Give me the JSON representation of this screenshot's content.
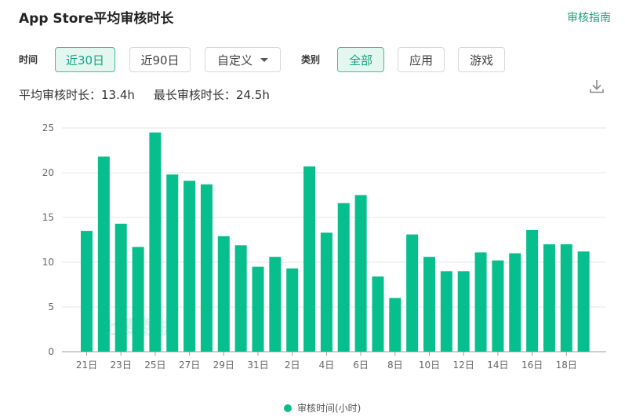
{
  "header": {
    "title": "App Store平均审核时长",
    "guide_link": "审核指南"
  },
  "filters": {
    "time_label": "时间",
    "time_buttons": [
      {
        "label": "近30日",
        "active": true
      },
      {
        "label": "近90日",
        "active": false
      }
    ],
    "custom_dropdown": "自定义",
    "category_label": "类别",
    "category_buttons": [
      {
        "label": "全部",
        "active": true
      },
      {
        "label": "应用",
        "active": false
      },
      {
        "label": "游戏",
        "active": false
      }
    ]
  },
  "stats": {
    "avg_label": "平均审核时长：",
    "avg_value": "13.4h",
    "max_label": "最长审核时长：",
    "max_value": "24.5h"
  },
  "icons": {
    "download": "download-icon"
  },
  "colors": {
    "accent": "#06bf8c",
    "link": "#1a9e7e",
    "active_bg": "#e3f6ef"
  },
  "chart_data": {
    "type": "bar",
    "categories": [
      "21日",
      "22日",
      "23日",
      "24日",
      "25日",
      "26日",
      "27日",
      "28日",
      "29日",
      "30日",
      "31日",
      "1日",
      "2日",
      "3日",
      "4日",
      "5日",
      "6日",
      "7日",
      "8日",
      "9日",
      "10日",
      "11日",
      "12日",
      "13日",
      "14日",
      "15日",
      "16日",
      "17日",
      "18日",
      "19日"
    ],
    "x_tick_labels": [
      "21日",
      "23日",
      "25日",
      "27日",
      "29日",
      "31日",
      "2日",
      "4日",
      "6日",
      "8日",
      "10日",
      "12日",
      "14日",
      "16日",
      "18日"
    ],
    "series": [
      {
        "name": "审核时间(小时)",
        "values": [
          13.5,
          21.8,
          14.3,
          11.7,
          24.5,
          19.8,
          19.1,
          18.7,
          12.9,
          11.9,
          9.5,
          10.6,
          9.3,
          20.7,
          13.3,
          16.6,
          17.5,
          8.4,
          6.0,
          13.1,
          10.6,
          9.0,
          9.0,
          11.1,
          10.2,
          11.0,
          13.6,
          12.0,
          12.0,
          11.2
        ]
      }
    ],
    "ylim": [
      0,
      25
    ],
    "yticks": [
      0,
      5,
      10,
      15,
      20,
      25
    ],
    "grid": true,
    "legend": "bottom-center",
    "watermark": "七麦数据"
  }
}
